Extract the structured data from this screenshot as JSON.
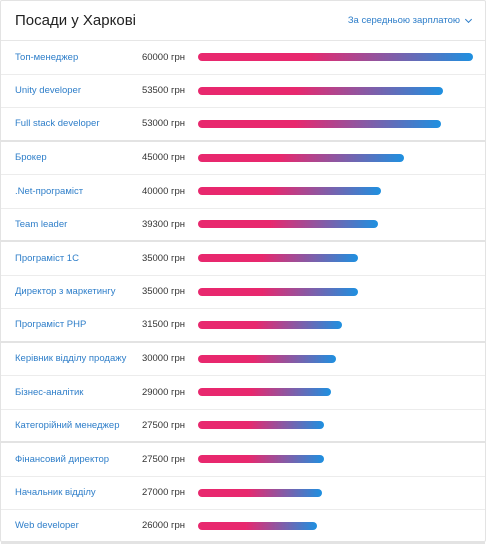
{
  "header": {
    "title": "Посади у Харкові",
    "sort_label": "За середньою зарплатою"
  },
  "colors": {
    "bar_start": "#e8286e",
    "bar_end": "#1e90e0",
    "link": "#2e7ec9"
  },
  "rows": [
    {
      "label": "Топ-менеджер",
      "value_text": "60000 грн",
      "value": 60000
    },
    {
      "label": "Unity developer",
      "value_text": "53500 грн",
      "value": 53500
    },
    {
      "label": "Full stack developer",
      "value_text": "53000 грн",
      "value": 53000
    },
    {
      "label": "Брокер",
      "value_text": "45000 грн",
      "value": 45000
    },
    {
      "label": ".Net-програміст",
      "value_text": "40000 грн",
      "value": 40000
    },
    {
      "label": "Team leader",
      "value_text": "39300 грн",
      "value": 39300
    },
    {
      "label": "Програміст 1С",
      "value_text": "35000 грн",
      "value": 35000
    },
    {
      "label": "Директор з маркетингу",
      "value_text": "35000 грн",
      "value": 35000
    },
    {
      "label": "Програміст PHP",
      "value_text": "31500 грн",
      "value": 31500
    },
    {
      "label": "Керівник відділу продажу",
      "value_text": "30000 грн",
      "value": 30000
    },
    {
      "label": "Бізнес-аналітик",
      "value_text": "29000 грн",
      "value": 29000
    },
    {
      "label": "Категорійний менеджер",
      "value_text": "27500 грн",
      "value": 27500
    },
    {
      "label": "Фінансовий директор",
      "value_text": "27500 грн",
      "value": 27500
    },
    {
      "label": "Начальник відділу",
      "value_text": "27000 грн",
      "value": 27000
    },
    {
      "label": "Web developer",
      "value_text": "26000 грн",
      "value": 26000
    }
  ]
}
